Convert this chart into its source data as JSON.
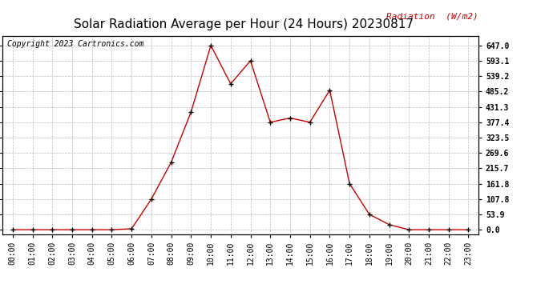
{
  "title": "Solar Radiation Average per Hour (24 Hours) 20230817",
  "copyright": "Copyright 2023 Cartronics.com",
  "ylabel": "Radiation  (W/m2)",
  "hours": [
    "00:00",
    "01:00",
    "02:00",
    "03:00",
    "04:00",
    "05:00",
    "06:00",
    "07:00",
    "08:00",
    "09:00",
    "10:00",
    "11:00",
    "12:00",
    "13:00",
    "14:00",
    "15:00",
    "16:00",
    "17:00",
    "18:00",
    "19:00",
    "20:00",
    "21:00",
    "22:00",
    "23:00"
  ],
  "values": [
    0.0,
    0.0,
    0.0,
    0.0,
    0.0,
    0.0,
    3.5,
    107.8,
    237.0,
    413.0,
    647.0,
    512.0,
    593.1,
    377.4,
    392.0,
    377.4,
    490.0,
    161.8,
    53.9,
    18.0,
    0.0,
    0.0,
    0.0,
    0.0
  ],
  "line_color": "#cc0000",
  "marker_color": "#000000",
  "bg_color": "#ffffff",
  "grid_color": "#bbbbbb",
  "yticks": [
    0.0,
    53.9,
    107.8,
    161.8,
    215.7,
    269.6,
    323.5,
    377.4,
    431.3,
    485.2,
    539.2,
    593.1,
    647.0
  ],
  "title_fontsize": 11,
  "tick_fontsize": 7,
  "copyright_fontsize": 7,
  "ylabel_fontsize": 8
}
